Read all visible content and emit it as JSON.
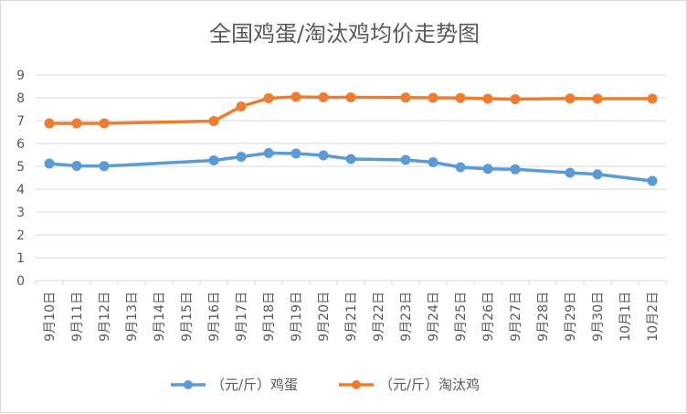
{
  "chart_data": {
    "type": "line",
    "title": "全国鸡蛋/淘汰鸡均价走势图",
    "xlabel": "",
    "ylabel": "",
    "ylim": [
      0,
      9
    ],
    "yticks": [
      0,
      1,
      2,
      3,
      4,
      5,
      6,
      7,
      8,
      9
    ],
    "grid": true,
    "legend_position": "bottom",
    "categories": [
      "9月10日",
      "9月11日",
      "9月12日",
      "9月13日",
      "9月14日",
      "9月15日",
      "9月16日",
      "9月17日",
      "9月18日",
      "9月19日",
      "9月20日",
      "9月21日",
      "9月22日",
      "9月23日",
      "9月24日",
      "9月25日",
      "9月26日",
      "9月27日",
      "9月28日",
      "9月29日",
      "9月30日",
      "10月1日",
      "10月2日"
    ],
    "series": [
      {
        "name": "（元/斤）鸡蛋",
        "color": "#5b9bd5",
        "values": [
          5.12,
          5.02,
          5.01,
          null,
          null,
          null,
          5.26,
          5.42,
          5.58,
          5.56,
          5.48,
          5.32,
          null,
          5.28,
          5.18,
          4.96,
          4.89,
          4.87,
          null,
          4.72,
          4.65,
          null,
          4.36
        ]
      },
      {
        "name": "（元/斤）淘汰鸡",
        "color": "#ed7d31",
        "values": [
          6.88,
          6.88,
          6.88,
          null,
          null,
          null,
          6.98,
          7.62,
          7.98,
          8.04,
          8.02,
          8.02,
          null,
          8.01,
          8.0,
          7.99,
          7.96,
          7.94,
          null,
          7.97,
          7.96,
          null,
          7.96
        ]
      }
    ]
  }
}
